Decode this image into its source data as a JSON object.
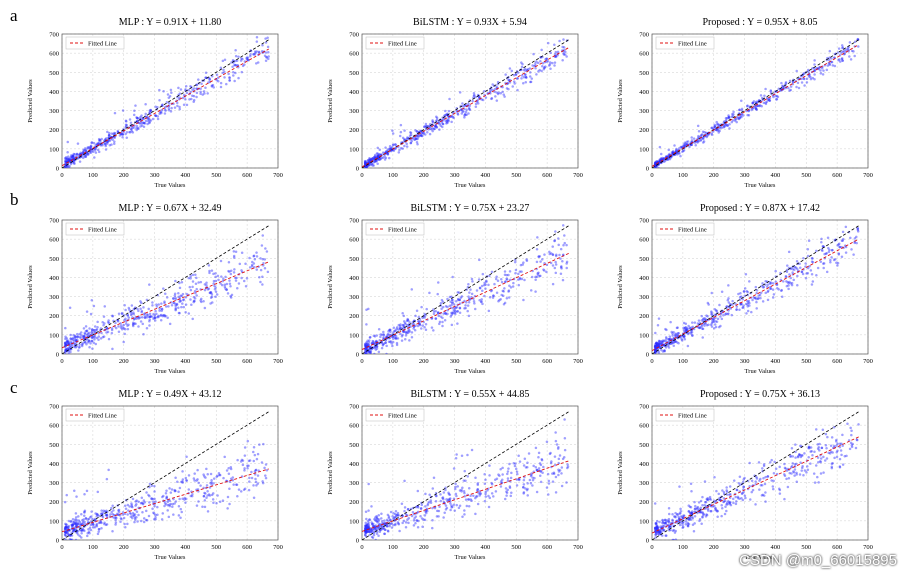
{
  "row_labels": [
    "a",
    "b",
    "c"
  ],
  "watermark": "CSDN @m0_66015895",
  "chart_data": [
    {
      "type": "scatter",
      "row": "a",
      "title": "MLP : Y = 0.91X + 11.80",
      "xlabel": "True Values",
      "ylabel": "Predicted Values",
      "legend": "Fitted Line",
      "legend_position": "top-left",
      "xlim": [
        0,
        700
      ],
      "ylim": [
        0,
        700
      ],
      "xticks": [
        0,
        100,
        200,
        300,
        400,
        500,
        600,
        700
      ],
      "yticks": [
        0,
        100,
        200,
        300,
        400,
        500,
        600,
        700
      ],
      "fit": {
        "slope": 0.91,
        "intercept": 11.8
      },
      "identity_line": true,
      "scatter": {
        "n": 520,
        "noise": 28,
        "seed": 11
      },
      "grid": true
    },
    {
      "type": "scatter",
      "row": "a",
      "title": "BiLSTM : Y = 0.93X + 5.94",
      "xlabel": "True Values",
      "ylabel": "Predicted Values",
      "legend": "Fitted Line",
      "legend_position": "top-left",
      "xlim": [
        0,
        700
      ],
      "ylim": [
        0,
        700
      ],
      "xticks": [
        0,
        100,
        200,
        300,
        400,
        500,
        600,
        700
      ],
      "yticks": [
        0,
        100,
        200,
        300,
        400,
        500,
        600,
        700
      ],
      "fit": {
        "slope": 0.93,
        "intercept": 5.94
      },
      "identity_line": true,
      "scatter": {
        "n": 520,
        "noise": 24,
        "seed": 12
      },
      "grid": true
    },
    {
      "type": "scatter",
      "row": "a",
      "title": "Proposed : Y = 0.95X + 8.05",
      "xlabel": "True Values",
      "ylabel": "Predicted Values",
      "legend": "Fitted Line",
      "legend_position": "top-left",
      "xlim": [
        0,
        700
      ],
      "ylim": [
        0,
        700
      ],
      "xticks": [
        0,
        100,
        200,
        300,
        400,
        500,
        600,
        700
      ],
      "yticks": [
        0,
        100,
        200,
        300,
        400,
        500,
        600,
        700
      ],
      "fit": {
        "slope": 0.95,
        "intercept": 8.05
      },
      "identity_line": true,
      "scatter": {
        "n": 520,
        "noise": 18,
        "seed": 13
      },
      "grid": true
    },
    {
      "type": "scatter",
      "row": "b",
      "title": "MLP : Y = 0.67X + 32.49",
      "xlabel": "True Values",
      "ylabel": "Predicted Values",
      "legend": "Fitted Line",
      "legend_position": "top-left",
      "xlim": [
        0,
        700
      ],
      "ylim": [
        0,
        700
      ],
      "xticks": [
        0,
        100,
        200,
        300,
        400,
        500,
        600,
        700
      ],
      "yticks": [
        0,
        100,
        200,
        300,
        400,
        500,
        600,
        700
      ],
      "fit": {
        "slope": 0.67,
        "intercept": 32.49
      },
      "identity_line": true,
      "scatter": {
        "n": 520,
        "noise": 48,
        "seed": 21
      },
      "grid": true
    },
    {
      "type": "scatter",
      "row": "b",
      "title": "BiLSTM : Y = 0.75X + 23.27",
      "xlabel": "True Values",
      "ylabel": "Predicted Values",
      "legend": "Fitted Line",
      "legend_position": "top-left",
      "xlim": [
        0,
        700
      ],
      "ylim": [
        0,
        700
      ],
      "xticks": [
        0,
        100,
        200,
        300,
        400,
        500,
        600,
        700
      ],
      "yticks": [
        0,
        100,
        200,
        300,
        400,
        500,
        600,
        700
      ],
      "fit": {
        "slope": 0.75,
        "intercept": 23.27
      },
      "identity_line": true,
      "scatter": {
        "n": 520,
        "noise": 45,
        "seed": 22
      },
      "grid": true
    },
    {
      "type": "scatter",
      "row": "b",
      "title": "Proposed : Y = 0.87X + 17.42",
      "xlabel": "True Values",
      "ylabel": "Predicted Values",
      "legend": "Fitted Line",
      "legend_position": "top-left",
      "xlim": [
        0,
        700
      ],
      "ylim": [
        0,
        700
      ],
      "xticks": [
        0,
        100,
        200,
        300,
        400,
        500,
        600,
        700
      ],
      "yticks": [
        0,
        100,
        200,
        300,
        400,
        500,
        600,
        700
      ],
      "fit": {
        "slope": 0.87,
        "intercept": 17.42
      },
      "identity_line": true,
      "scatter": {
        "n": 520,
        "noise": 36,
        "seed": 23
      },
      "grid": true
    },
    {
      "type": "scatter",
      "row": "c",
      "title": "MLP : Y = 0.49X + 43.12",
      "xlabel": "True Values",
      "ylabel": "Predicted Values",
      "legend": "Fitted Line",
      "legend_position": "top-left",
      "xlim": [
        0,
        700
      ],
      "ylim": [
        0,
        700
      ],
      "xticks": [
        0,
        100,
        200,
        300,
        400,
        500,
        600,
        700
      ],
      "yticks": [
        0,
        100,
        200,
        300,
        400,
        500,
        600,
        700
      ],
      "fit": {
        "slope": 0.49,
        "intercept": 43.12
      },
      "identity_line": true,
      "scatter": {
        "n": 520,
        "noise": 55,
        "seed": 31
      },
      "grid": true
    },
    {
      "type": "scatter",
      "row": "c",
      "title": "BiLSTM : Y = 0.55X + 44.85",
      "xlabel": "True Values",
      "ylabel": "Predicted Values",
      "legend": "Fitted Line",
      "legend_position": "top-left",
      "xlim": [
        0,
        700
      ],
      "ylim": [
        0,
        700
      ],
      "xticks": [
        0,
        100,
        200,
        300,
        400,
        500,
        600,
        700
      ],
      "yticks": [
        0,
        100,
        200,
        300,
        400,
        500,
        600,
        700
      ],
      "fit": {
        "slope": 0.55,
        "intercept": 44.85
      },
      "identity_line": true,
      "scatter": {
        "n": 520,
        "noise": 55,
        "seed": 32
      },
      "grid": true
    },
    {
      "type": "scatter",
      "row": "c",
      "title": "Proposed : Y = 0.75X + 36.13",
      "xlabel": "True Values",
      "ylabel": "Predicted Values",
      "legend": "Fitted Line",
      "legend_position": "top-left",
      "xlim": [
        0,
        700
      ],
      "ylim": [
        0,
        700
      ],
      "xticks": [
        0,
        100,
        200,
        300,
        400,
        500,
        600,
        700
      ],
      "yticks": [
        0,
        100,
        200,
        300,
        400,
        500,
        600,
        700
      ],
      "fit": {
        "slope": 0.75,
        "intercept": 36.13
      },
      "identity_line": true,
      "scatter": {
        "n": 520,
        "noise": 48,
        "seed": 33
      },
      "grid": true
    }
  ]
}
